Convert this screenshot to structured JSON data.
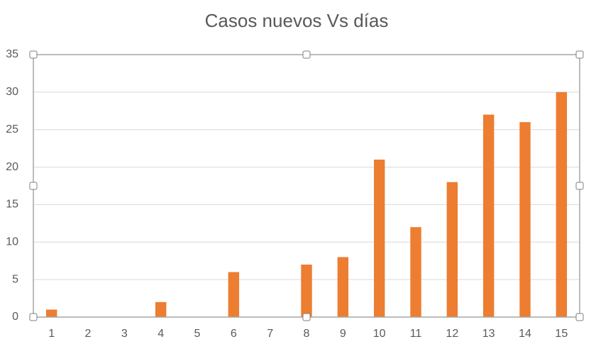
{
  "chart_data": {
    "type": "bar",
    "title": "Casos nuevos Vs días",
    "categories": [
      "1",
      "2",
      "3",
      "4",
      "5",
      "6",
      "7",
      "8",
      "9",
      "10",
      "11",
      "12",
      "13",
      "14",
      "15"
    ],
    "values": [
      1,
      0,
      0,
      2,
      0,
      6,
      0,
      7,
      8,
      21,
      12,
      18,
      27,
      26,
      30
    ],
    "color": "#ed7d31",
    "ylim": [
      0,
      35
    ],
    "yticks": [
      0,
      5,
      10,
      15,
      20,
      25,
      30,
      35
    ],
    "grid": true
  }
}
